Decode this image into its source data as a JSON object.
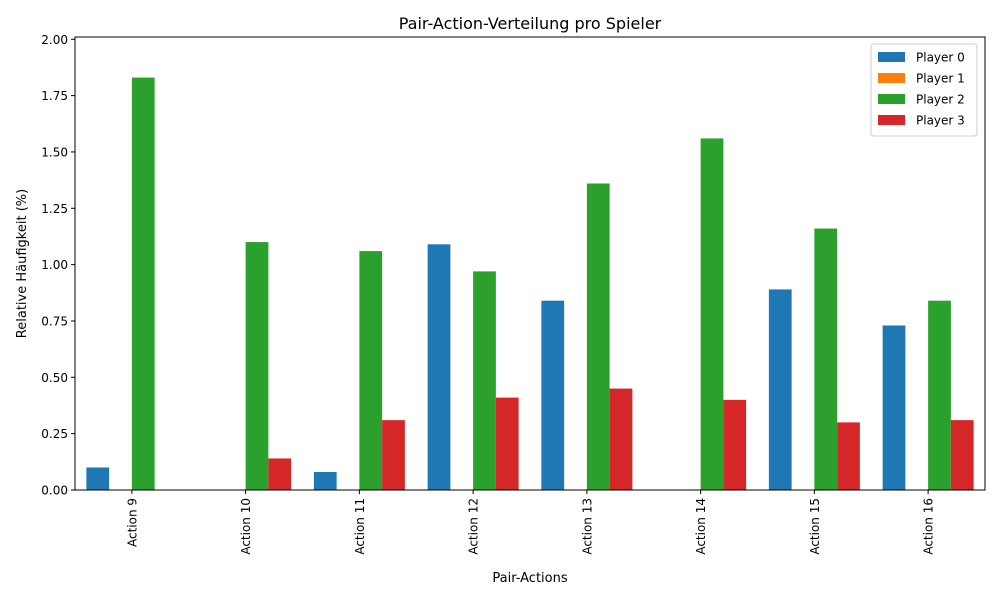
{
  "chart_data": {
    "type": "bar",
    "title": "Pair-Action-Verteilung pro Spieler",
    "xlabel": "Pair-Actions",
    "ylabel": "Relative Häufigkeit (%)",
    "categories": [
      "Action 9",
      "Action 10",
      "Action 11",
      "Action 12",
      "Action 13",
      "Action 14",
      "Action 15",
      "Action 16"
    ],
    "ylim": [
      0,
      2.01
    ],
    "yticks": [
      "0.00",
      "0.25",
      "0.50",
      "0.75",
      "1.00",
      "1.25",
      "1.50",
      "1.75",
      "2.00"
    ],
    "grid": false,
    "legend_position": "top-right",
    "series": [
      {
        "name": "Player 0",
        "color": "#1f77b4",
        "values": [
          0.1,
          0.0,
          0.08,
          1.09,
          0.84,
          0.0,
          0.89,
          0.73
        ]
      },
      {
        "name": "Player 1",
        "color": "#ff7f0e",
        "values": [
          0,
          0,
          0,
          0,
          0,
          0,
          0,
          0
        ]
      },
      {
        "name": "Player 2",
        "color": "#2ca02c",
        "values": [
          1.83,
          1.1,
          1.06,
          0.97,
          1.36,
          1.56,
          1.16,
          0.84
        ]
      },
      {
        "name": "Player 3",
        "color": "#d62728",
        "values": [
          0.0,
          0.14,
          0.31,
          0.41,
          0.45,
          0.4,
          0.3,
          0.31
        ]
      }
    ]
  }
}
